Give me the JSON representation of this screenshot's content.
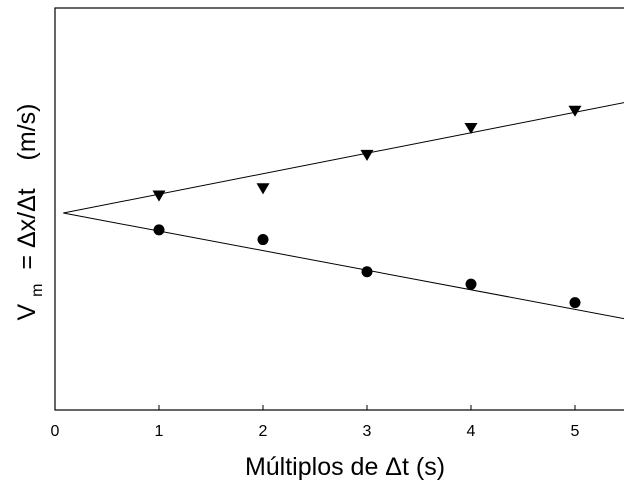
{
  "chart_data": {
    "type": "scatter",
    "xlabel": "Múltiplos de Δt  (s)",
    "ylabel": {
      "main": "V",
      "sub": "m",
      "rest": " = Δx/Δt    (m/s)"
    },
    "xlim": [
      0,
      5.5
    ],
    "ylim": [
      0,
      1
    ],
    "x_ticks": [
      "0",
      "1",
      "2",
      "3",
      "4",
      "5"
    ],
    "y_ticks_labeled": false,
    "grid": false,
    "series": [
      {
        "marker": "triangle-down",
        "x": [
          1,
          2,
          3,
          4,
          5
        ],
        "y": [
          0.533,
          0.551,
          0.634,
          0.701,
          0.744
        ],
        "fit": {
          "x": [
            0.08,
            5.5
          ],
          "y": [
            0.49,
            0.766
          ]
        }
      },
      {
        "marker": "circle",
        "x": [
          1,
          2,
          3,
          4,
          5
        ],
        "y": [
          0.448,
          0.424,
          0.344,
          0.313,
          0.267
        ],
        "fit": {
          "x": [
            0.08,
            5.5
          ],
          "y": [
            0.49,
            0.226
          ]
        }
      }
    ]
  }
}
